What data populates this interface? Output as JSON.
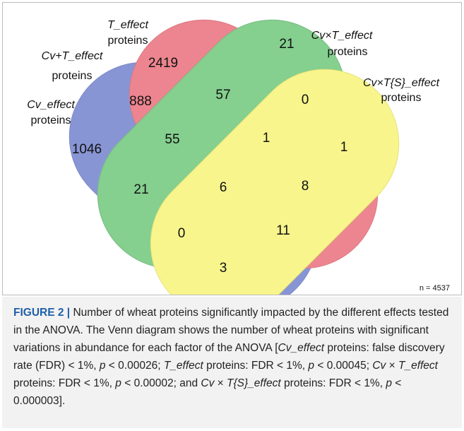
{
  "venn": {
    "sets": [
      {
        "name": "Cv_effect",
        "suffix": "proteins"
      },
      {
        "name": "T_effect",
        "suffix": "proteins"
      },
      {
        "name": "Cv×T_effect",
        "suffix": "proteins"
      },
      {
        "name": "Cv×T{S}_effect",
        "suffix": "proteins"
      },
      {
        "name": "Cv+T_effect",
        "suffix": "proteins"
      }
    ],
    "regions": [
      2419,
      888,
      1046,
      21,
      57,
      0,
      1,
      55,
      1,
      21,
      6,
      8,
      0,
      11,
      3
    ],
    "total": "n = 4537"
  },
  "caption": {
    "label": "FIGURE 2 |",
    "segments": [
      {
        "text": " Number of wheat proteins significantly impacted by the different effects tested in the ANOVA. The Venn diagram shows the number of wheat proteins with significant variations in abundance for each factor of the ANOVA ["
      },
      {
        "text": "Cv_effect",
        "italic": true
      },
      {
        "text": " proteins: false discovery rate (FDR) < 1%, "
      },
      {
        "text": "p",
        "italic": true
      },
      {
        "text": " < 0.00026; "
      },
      {
        "text": "T_effect",
        "italic": true
      },
      {
        "text": " proteins: FDR < 1%, "
      },
      {
        "text": "p",
        "italic": true
      },
      {
        "text": " < 0.00045; "
      },
      {
        "text": "Cv",
        "italic": true
      },
      {
        "text": " × "
      },
      {
        "text": "T_effect",
        "italic": true
      },
      {
        "text": " proteins: FDR < 1%, "
      },
      {
        "text": "p",
        "italic": true
      },
      {
        "text": " < 0.00002; and "
      },
      {
        "text": "Cv",
        "italic": true
      },
      {
        "text": " × "
      },
      {
        "text": "T{S}_effect",
        "italic": true
      },
      {
        "text": " proteins: FDR < 1%, "
      },
      {
        "text": "p",
        "italic": true
      },
      {
        "text": " < 0.000003]."
      }
    ]
  }
}
